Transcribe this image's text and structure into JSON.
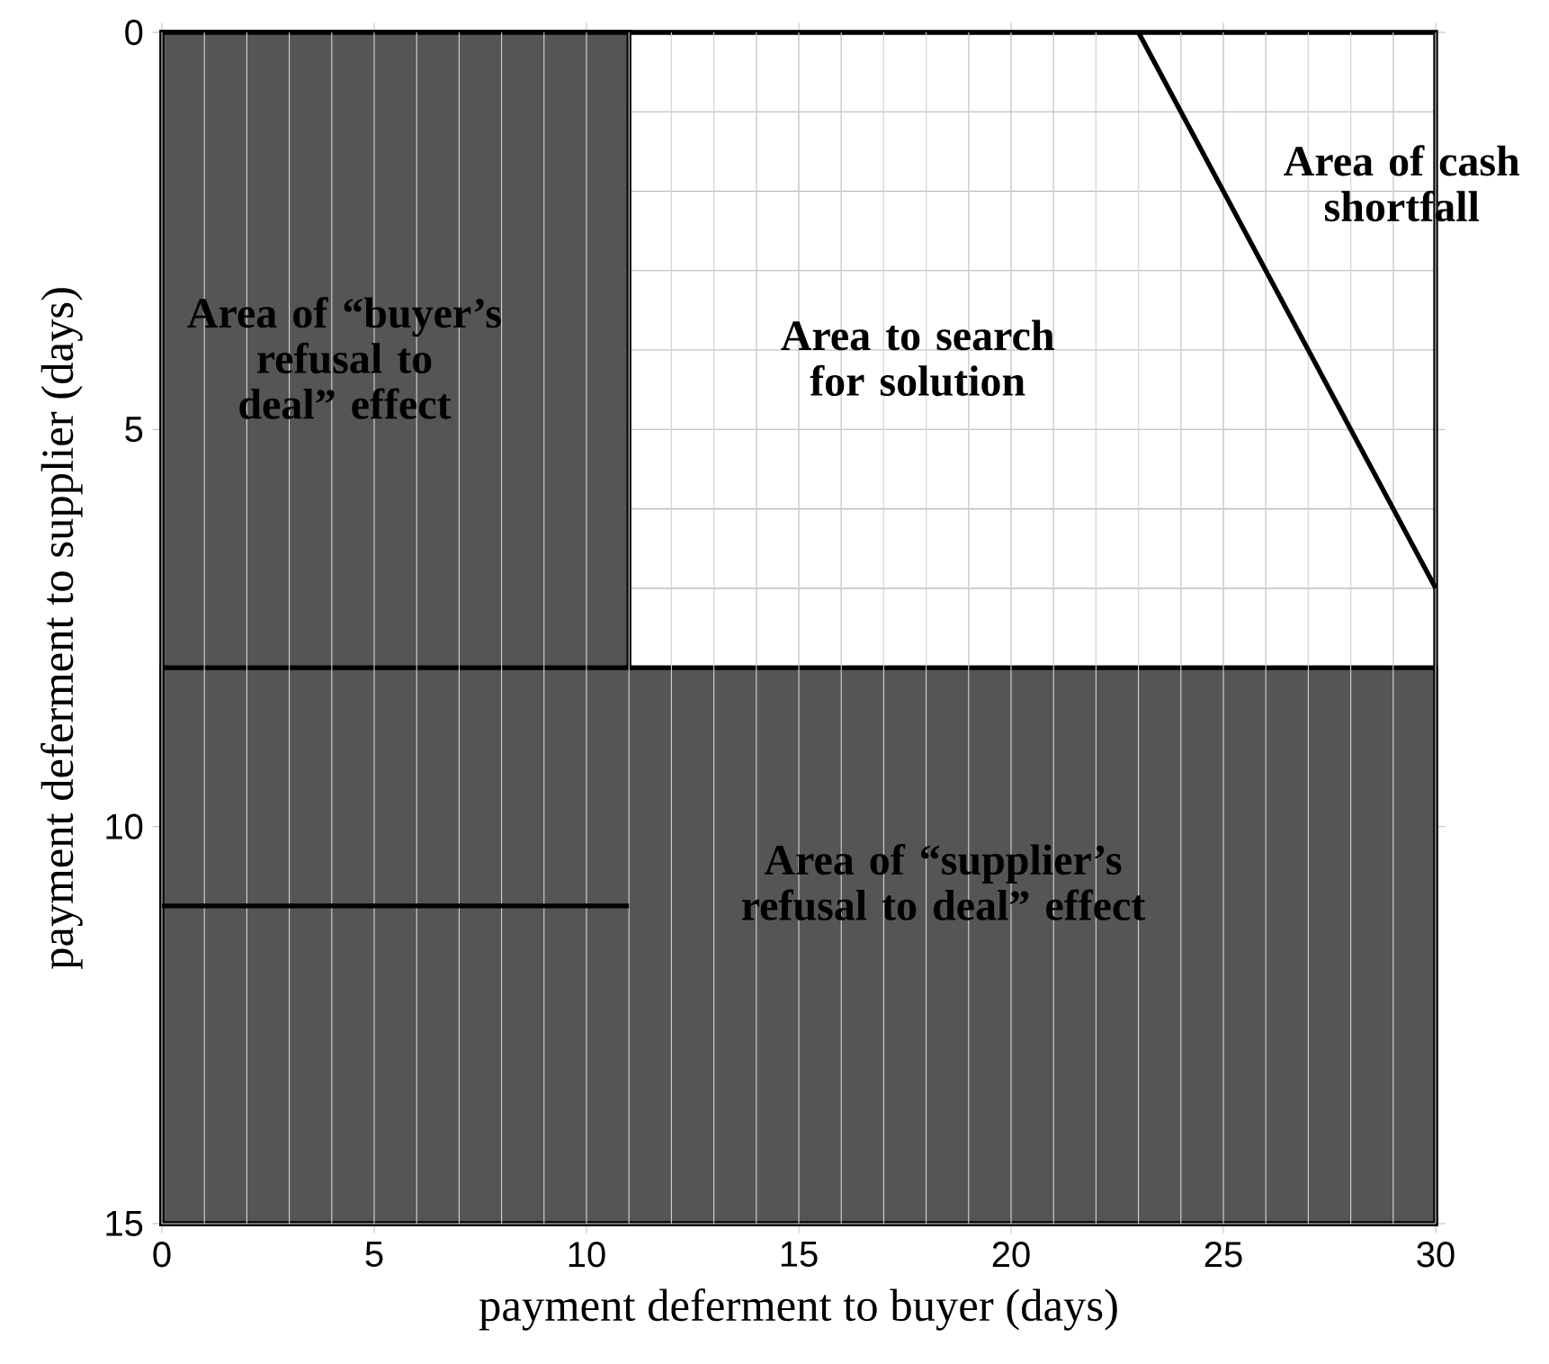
{
  "chart_data": {
    "type": "line",
    "xlabel": "payment deferment to buyer (days)",
    "ylabel": "payment deferment to supplier (days)",
    "xlim": [
      0,
      30
    ],
    "ylim": [
      15,
      0
    ],
    "xticks": [
      0,
      5,
      10,
      15,
      20,
      25,
      30
    ],
    "yticks": [
      0,
      5,
      10,
      15
    ],
    "grid": true,
    "bands": [
      {
        "axis": "x",
        "from": 0,
        "to": 11,
        "color": "#555555"
      },
      {
        "axis": "y",
        "from": 8,
        "to": 15,
        "color": "#555555"
      }
    ],
    "series": [
      {
        "color": "#000000",
        "x": [
          0,
          11
        ],
        "values": [
          11,
          11
        ]
      },
      {
        "color": "#000000",
        "x": [
          23,
          30
        ],
        "values": [
          0,
          7
        ]
      }
    ],
    "annotations": [
      "Area of “buyer’s refusal to deal” effect",
      "Area to search for solution",
      "Area of cash shortfall",
      "Area of “supplier’s refusal to deal” effect"
    ]
  }
}
